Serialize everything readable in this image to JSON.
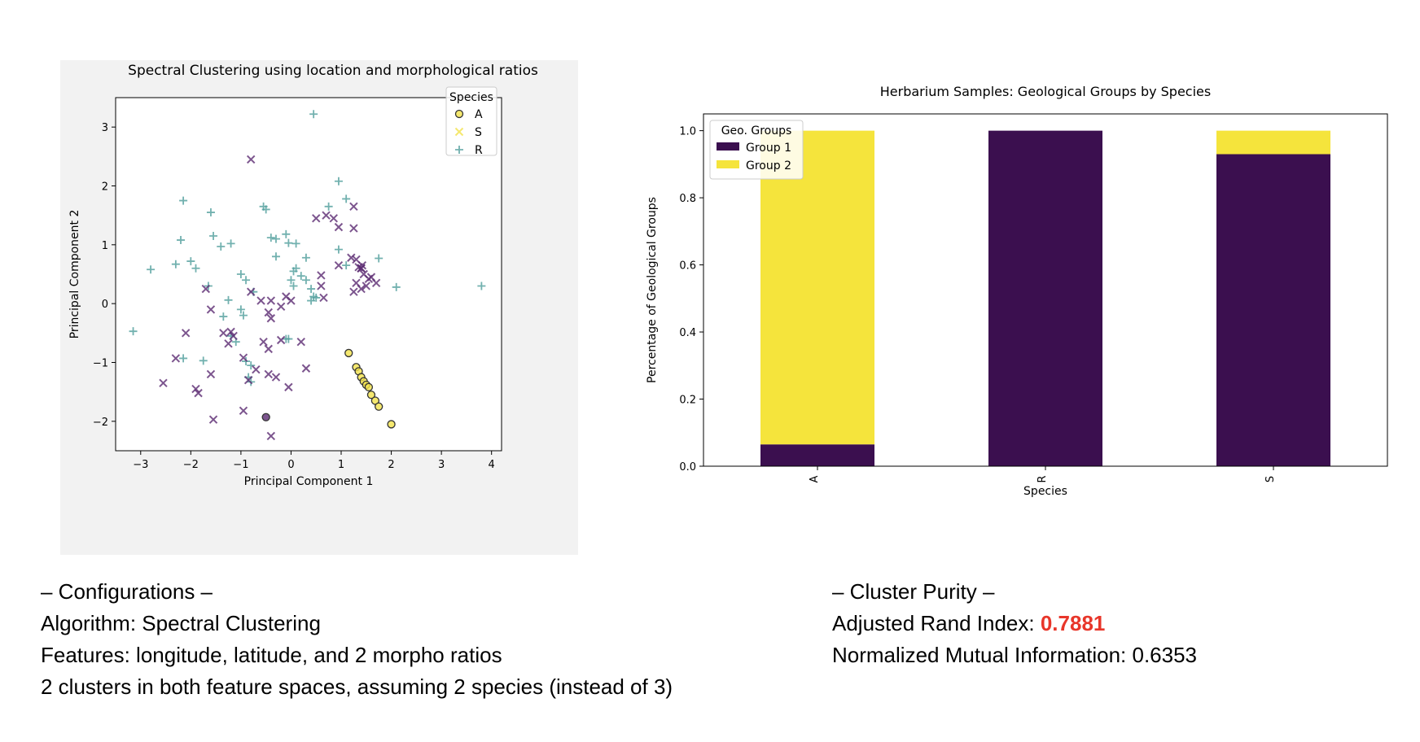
{
  "chart_data": [
    {
      "type": "scatter",
      "title": "Spectral Clustering using location and morphological ratios",
      "xlabel": "Principal Component 1",
      "ylabel": "Principal Component 2",
      "xlim": [
        -3.5,
        4.2
      ],
      "ylim": [
        -2.5,
        3.5
      ],
      "xticks": [
        -3,
        -2,
        -1,
        0,
        1,
        2,
        3,
        4
      ],
      "yticks": [
        -2,
        -1,
        0,
        1,
        2,
        3
      ],
      "grid": false,
      "legend": {
        "title": "Species",
        "placement": "top-right",
        "entries": [
          "A",
          "S",
          "R"
        ]
      },
      "series": [
        {
          "name": "A",
          "marker": "o",
          "points": [
            {
              "x": 1.15,
              "y": -0.84,
              "c": "y"
            },
            {
              "x": 1.3,
              "y": -1.08,
              "c": "y"
            },
            {
              "x": 1.35,
              "y": -1.15,
              "c": "y"
            },
            {
              "x": 1.4,
              "y": -1.25,
              "c": "y"
            },
            {
              "x": 1.45,
              "y": -1.32,
              "c": "y"
            },
            {
              "x": 1.5,
              "y": -1.38,
              "c": "y"
            },
            {
              "x": 1.55,
              "y": -1.42,
              "c": "y"
            },
            {
              "x": 1.6,
              "y": -1.55,
              "c": "y"
            },
            {
              "x": 1.68,
              "y": -1.65,
              "c": "y"
            },
            {
              "x": 1.75,
              "y": -1.75,
              "c": "y"
            },
            {
              "x": 2.0,
              "y": -2.05,
              "c": "y"
            },
            {
              "x": -0.5,
              "y": -1.93,
              "c": "p"
            }
          ]
        },
        {
          "name": "S",
          "marker": "x",
          "points": [
            {
              "x": -0.8,
              "y": 2.45,
              "c": "p"
            },
            {
              "x": 0.5,
              "y": 1.45,
              "c": "p"
            },
            {
              "x": 0.7,
              "y": 1.5,
              "c": "p"
            },
            {
              "x": 0.85,
              "y": 1.45,
              "c": "p"
            },
            {
              "x": 0.95,
              "y": 1.3,
              "c": "p"
            },
            {
              "x": 1.25,
              "y": 1.65,
              "c": "p"
            },
            {
              "x": 1.25,
              "y": 1.28,
              "c": "p"
            },
            {
              "x": 1.2,
              "y": 0.78,
              "c": "p"
            },
            {
              "x": 1.3,
              "y": 0.75,
              "c": "p"
            },
            {
              "x": 1.35,
              "y": 0.62,
              "c": "p"
            },
            {
              "x": 1.4,
              "y": 0.6,
              "c": "p"
            },
            {
              "x": 1.45,
              "y": 0.5,
              "c": "p"
            },
            {
              "x": 1.55,
              "y": 0.42,
              "c": "p"
            },
            {
              "x": 1.6,
              "y": 0.45,
              "c": "p"
            },
            {
              "x": 1.7,
              "y": 0.35,
              "c": "p"
            },
            {
              "x": 1.5,
              "y": 0.3,
              "c": "p"
            },
            {
              "x": 1.3,
              "y": 0.35,
              "c": "p"
            },
            {
              "x": 1.4,
              "y": 0.25,
              "c": "p"
            },
            {
              "x": 1.25,
              "y": 0.2,
              "c": "p"
            },
            {
              "x": 0.95,
              "y": 0.65,
              "c": "p"
            },
            {
              "x": 0.6,
              "y": 0.48,
              "c": "p"
            },
            {
              "x": 0.6,
              "y": 0.3,
              "c": "p"
            },
            {
              "x": 0.65,
              "y": 0.1,
              "c": "p"
            },
            {
              "x": -0.1,
              "y": 0.12,
              "c": "p"
            },
            {
              "x": 0.0,
              "y": 0.05,
              "c": "p"
            },
            {
              "x": -0.2,
              "y": -0.05,
              "c": "p"
            },
            {
              "x": -1.7,
              "y": 0.25,
              "c": "p"
            },
            {
              "x": -1.6,
              "y": -0.1,
              "c": "p"
            },
            {
              "x": -0.8,
              "y": 0.2,
              "c": "p"
            },
            {
              "x": -0.6,
              "y": 0.05,
              "c": "p"
            },
            {
              "x": -0.4,
              "y": 0.05,
              "c": "p"
            },
            {
              "x": -0.45,
              "y": -0.15,
              "c": "p"
            },
            {
              "x": -0.4,
              "y": -0.25,
              "c": "p"
            },
            {
              "x": -1.35,
              "y": -0.5,
              "c": "p"
            },
            {
              "x": -1.2,
              "y": -0.48,
              "c": "p"
            },
            {
              "x": -1.15,
              "y": -0.55,
              "c": "p"
            },
            {
              "x": -1.25,
              "y": -0.68,
              "c": "p"
            },
            {
              "x": -0.55,
              "y": -0.65,
              "c": "p"
            },
            {
              "x": -0.45,
              "y": -0.77,
              "c": "p"
            },
            {
              "x": -0.2,
              "y": -0.62,
              "c": "p"
            },
            {
              "x": -2.1,
              "y": -0.5,
              "c": "p"
            },
            {
              "x": -2.3,
              "y": -0.93,
              "c": "p"
            },
            {
              "x": -2.55,
              "y": -1.35,
              "c": "p"
            },
            {
              "x": -1.9,
              "y": -1.45,
              "c": "p"
            },
            {
              "x": -1.85,
              "y": -1.52,
              "c": "p"
            },
            {
              "x": -1.55,
              "y": -1.97,
              "c": "p"
            },
            {
              "x": -0.95,
              "y": -0.92,
              "c": "p"
            },
            {
              "x": -0.95,
              "y": -1.82,
              "c": "p"
            },
            {
              "x": -0.85,
              "y": -1.3,
              "c": "p"
            },
            {
              "x": -0.7,
              "y": -1.12,
              "c": "p"
            },
            {
              "x": -0.45,
              "y": -1.2,
              "c": "p"
            },
            {
              "x": -0.05,
              "y": -1.42,
              "c": "p"
            },
            {
              "x": -0.3,
              "y": -1.25,
              "c": "p"
            },
            {
              "x": -0.4,
              "y": -2.25,
              "c": "p"
            },
            {
              "x": 0.2,
              "y": -0.65,
              "c": "p"
            },
            {
              "x": 0.3,
              "y": -1.1,
              "c": "p"
            },
            {
              "x": -1.6,
              "y": -1.2,
              "c": "p"
            },
            {
              "x": 1.4,
              "y": 0.6,
              "c": "p"
            },
            {
              "x": 1.42,
              "y": 0.65,
              "c": "p"
            }
          ]
        },
        {
          "name": "R",
          "marker": "+",
          "points": [
            {
              "x": 0.45,
              "y": 3.22,
              "c": "t"
            },
            {
              "x": -2.15,
              "y": 1.75,
              "c": "t"
            },
            {
              "x": -1.6,
              "y": 1.55,
              "c": "t"
            },
            {
              "x": -0.55,
              "y": 1.65,
              "c": "t"
            },
            {
              "x": -0.5,
              "y": 1.6,
              "c": "t"
            },
            {
              "x": 0.95,
              "y": 2.08,
              "c": "t"
            },
            {
              "x": 1.1,
              "y": 1.78,
              "c": "t"
            },
            {
              "x": 0.75,
              "y": 1.65,
              "c": "t"
            },
            {
              "x": -2.2,
              "y": 1.08,
              "c": "t"
            },
            {
              "x": -1.55,
              "y": 1.15,
              "c": "t"
            },
            {
              "x": -1.4,
              "y": 0.97,
              "c": "t"
            },
            {
              "x": -1.2,
              "y": 1.02,
              "c": "t"
            },
            {
              "x": -0.4,
              "y": 1.12,
              "c": "t"
            },
            {
              "x": -0.3,
              "y": 1.1,
              "c": "t"
            },
            {
              "x": -0.1,
              "y": 1.18,
              "c": "t"
            },
            {
              "x": -0.05,
              "y": 1.03,
              "c": "t"
            },
            {
              "x": 0.1,
              "y": 1.02,
              "c": "t"
            },
            {
              "x": -0.3,
              "y": 0.8,
              "c": "t"
            },
            {
              "x": 0.3,
              "y": 0.78,
              "c": "t"
            },
            {
              "x": 0.95,
              "y": 0.92,
              "c": "t"
            },
            {
              "x": 1.1,
              "y": 0.65,
              "c": "t"
            },
            {
              "x": 1.75,
              "y": 0.77,
              "c": "t"
            },
            {
              "x": -2.0,
              "y": 0.72,
              "c": "t"
            },
            {
              "x": -1.9,
              "y": 0.6,
              "c": "t"
            },
            {
              "x": -2.3,
              "y": 0.67,
              "c": "t"
            },
            {
              "x": -2.8,
              "y": 0.58,
              "c": "t"
            },
            {
              "x": -1.0,
              "y": 0.5,
              "c": "t"
            },
            {
              "x": -0.9,
              "y": 0.4,
              "c": "t"
            },
            {
              "x": 0.1,
              "y": 0.6,
              "c": "t"
            },
            {
              "x": 0.05,
              "y": 0.55,
              "c": "t"
            },
            {
              "x": 0.2,
              "y": 0.47,
              "c": "t"
            },
            {
              "x": 0.3,
              "y": 0.4,
              "c": "t"
            },
            {
              "x": 0.4,
              "y": 0.25,
              "c": "t"
            },
            {
              "x": 0.45,
              "y": 0.12,
              "c": "t"
            },
            {
              "x": 0.5,
              "y": 0.1,
              "c": "t"
            },
            {
              "x": 0.4,
              "y": 0.05,
              "c": "t"
            },
            {
              "x": 0.0,
              "y": 0.4,
              "c": "t"
            },
            {
              "x": 0.05,
              "y": 0.3,
              "c": "t"
            },
            {
              "x": 2.1,
              "y": 0.28,
              "c": "t"
            },
            {
              "x": 3.8,
              "y": 0.3,
              "c": "t"
            },
            {
              "x": -1.65,
              "y": 0.3,
              "c": "t"
            },
            {
              "x": -1.25,
              "y": 0.06,
              "c": "t"
            },
            {
              "x": -0.75,
              "y": 0.2,
              "c": "t"
            },
            {
              "x": -1.35,
              "y": -0.22,
              "c": "t"
            },
            {
              "x": -1.0,
              "y": -0.1,
              "c": "t"
            },
            {
              "x": -0.95,
              "y": -0.2,
              "c": "t"
            },
            {
              "x": -1.2,
              "y": -0.55,
              "c": "t"
            },
            {
              "x": -1.1,
              "y": -0.65,
              "c": "t"
            },
            {
              "x": -0.1,
              "y": -0.6,
              "c": "t"
            },
            {
              "x": -3.15,
              "y": -0.47,
              "c": "t"
            },
            {
              "x": -2.15,
              "y": -0.93,
              "c": "t"
            },
            {
              "x": -1.75,
              "y": -0.97,
              "c": "t"
            },
            {
              "x": -0.9,
              "y": -0.98,
              "c": "t"
            },
            {
              "x": -0.8,
              "y": -1.05,
              "c": "t"
            },
            {
              "x": -0.85,
              "y": -1.25,
              "c": "t"
            },
            {
              "x": -0.8,
              "y": -1.33,
              "c": "t"
            },
            {
              "x": -0.05,
              "y": -0.6,
              "c": "t"
            }
          ]
        }
      ]
    },
    {
      "type": "bar",
      "stacked": true,
      "title": "Herbarium Samples: Geological Groups by Species",
      "xlabel": "Species",
      "ylabel": "Percentage of Geological Groups",
      "categories": [
        "A",
        "R",
        "S"
      ],
      "ylim": [
        0,
        1.05
      ],
      "yticks": [
        "0.0",
        "0.2",
        "0.4",
        "0.6",
        "0.8",
        "1.0"
      ],
      "grid": false,
      "legend": {
        "title": "Geo. Groups",
        "placement": "top-left"
      },
      "series": [
        {
          "name": "Group 1",
          "color": "#3b0f4f",
          "values": [
            0.065,
            1.0,
            0.93
          ]
        },
        {
          "name": "Group 2",
          "color": "#f5e43c",
          "values": [
            0.935,
            0.0,
            0.07
          ]
        }
      ]
    }
  ],
  "colors": {
    "purple": "#5b2a72",
    "teal": "#4f9d9b",
    "yellow": "#f2e24b",
    "dark_purple": "#3b0f4f",
    "bar_yellow": "#f5e43c",
    "highlight": "#e8362a"
  },
  "config": {
    "heading": "– Configurations –",
    "algorithm": "Algorithm: Spectral Clustering",
    "features": "Features: longitude, latitude, and 2 morpho ratios",
    "clusters": "2 clusters in both feature spaces, assuming 2 species (instead of 3)"
  },
  "purity": {
    "heading": "– Cluster Purity –",
    "ari_label": "Adjusted Rand Index: ",
    "ari_value": "0.7881",
    "nmi": "Normalized Mutual Information: 0.6353"
  }
}
